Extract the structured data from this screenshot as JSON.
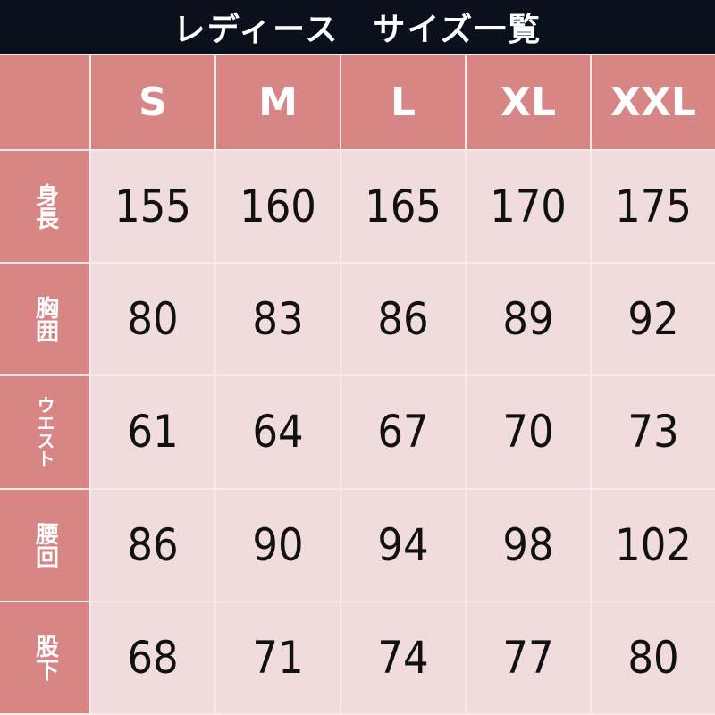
{
  "title": "レディース　サイズ一覧",
  "colors": {
    "title_bg": "#0a111c",
    "header_bg": "#d88585",
    "cell_bg": "#f0dcdc"
  },
  "columns": [
    "S",
    "M",
    "L",
    "XL",
    "XXL"
  ],
  "rows": [
    {
      "label": "身長",
      "values": [
        "155",
        "160",
        "165",
        "170",
        "175"
      ]
    },
    {
      "label": "胸囲",
      "values": [
        "80",
        "83",
        "86",
        "89",
        "92"
      ]
    },
    {
      "label": "ウエスト",
      "values": [
        "61",
        "64",
        "67",
        "70",
        "73"
      ]
    },
    {
      "label": "腰回",
      "values": [
        "86",
        "90",
        "94",
        "98",
        "102"
      ]
    },
    {
      "label": "股下",
      "values": [
        "68",
        "71",
        "74",
        "77",
        "80"
      ]
    }
  ]
}
